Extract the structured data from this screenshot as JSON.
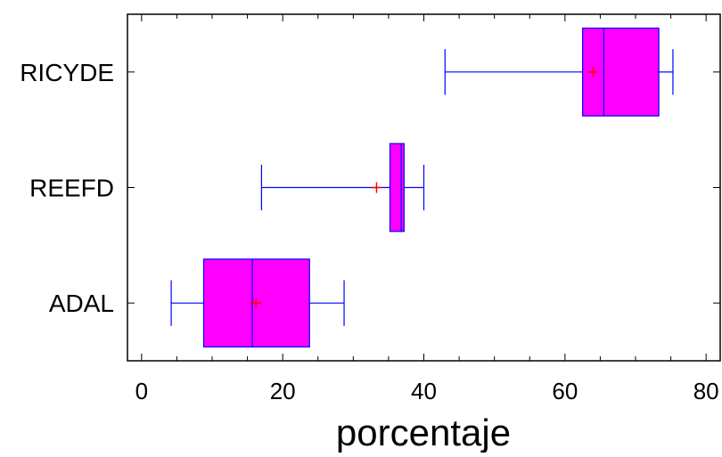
{
  "chart_data": {
    "type": "boxplot",
    "orientation": "horizontal",
    "xlabel": "porcentaje",
    "xlim": [
      -2,
      82
    ],
    "xticks": [
      0,
      20,
      40,
      60,
      80
    ],
    "xtick_labels": [
      "0",
      "20",
      "40",
      "60",
      "80"
    ],
    "grid": false,
    "legend": "none",
    "colors": {
      "box_fill": "#ff00ff",
      "box_edge": "#0000ff",
      "whisker": "#0000ff",
      "median": "#0000ff",
      "mean_marker": "#ff0000"
    },
    "categories": [
      "RICYDE",
      "REEFD",
      "ADAL"
    ],
    "series": [
      {
        "category": "RICYDE",
        "min": 43.0,
        "q1": 62.5,
        "median": 65.5,
        "q3": 73.3,
        "max": 75.3,
        "mean": 64.0
      },
      {
        "category": "REEFD",
        "min": 17.0,
        "q1": 35.2,
        "median": 36.8,
        "q3": 37.2,
        "max": 40.0,
        "mean": 33.3
      },
      {
        "category": "ADAL",
        "min": 4.2,
        "q1": 8.8,
        "median": 15.7,
        "q3": 23.8,
        "max": 28.7,
        "mean": 16.2
      }
    ]
  }
}
